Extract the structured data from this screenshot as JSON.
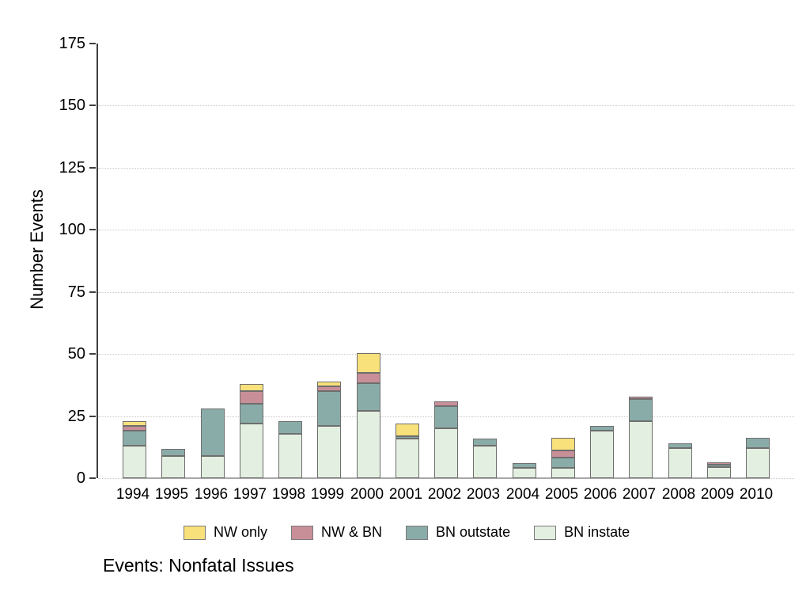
{
  "chart_data": {
    "type": "bar",
    "stacked": true,
    "title": "",
    "caption": "Events: Nonfatal Issues",
    "xlabel": "",
    "ylabel": "Number Events",
    "ylim": [
      0,
      175
    ],
    "yticks": [
      0,
      25,
      50,
      75,
      100,
      125,
      150,
      175
    ],
    "grid": "horizontal dotted lines at 25-unit intervals",
    "legend_position": "bottom",
    "legend_order": [
      "NW only",
      "NW & BN",
      "BN outstate",
      "BN instate"
    ],
    "categories": [
      "1994",
      "1995",
      "1996",
      "1997",
      "1998",
      "1999",
      "2000",
      "2001",
      "2002",
      "2003",
      "2004",
      "2005",
      "2006",
      "2007",
      "2008",
      "2009",
      "2010"
    ],
    "series": [
      {
        "name": "BN instate",
        "color": "#e3efe0",
        "values": [
          13,
          9,
          9,
          22,
          18,
          21,
          27,
          16,
          20,
          13,
          4,
          4,
          19,
          23,
          12,
          4.5,
          12
        ]
      },
      {
        "name": "BN outstate",
        "color": "#8aaca8",
        "values": [
          6,
          3,
          19,
          8,
          5,
          14,
          11,
          1,
          9,
          3,
          2,
          4,
          2,
          9,
          2,
          1,
          4
        ]
      },
      {
        "name": "NW & BN",
        "color": "#c98f99",
        "values": [
          2,
          0,
          0,
          5,
          0,
          2,
          4,
          0,
          2,
          0,
          0,
          3,
          0,
          1,
          0,
          1,
          0
        ]
      },
      {
        "name": "NW only",
        "color": "#f8e07a",
        "values": [
          2,
          0,
          0,
          3,
          0,
          2,
          8,
          5,
          0,
          0,
          0,
          5,
          0,
          0,
          0,
          0,
          0
        ]
      }
    ]
  },
  "colors": {
    "background": "#ffffff",
    "axis": "#3f3f3f",
    "gridline": "#c9c9c9",
    "baseline": "#a8a8a8",
    "segment_border": "#6e6e6e",
    "text": "#000000"
  }
}
